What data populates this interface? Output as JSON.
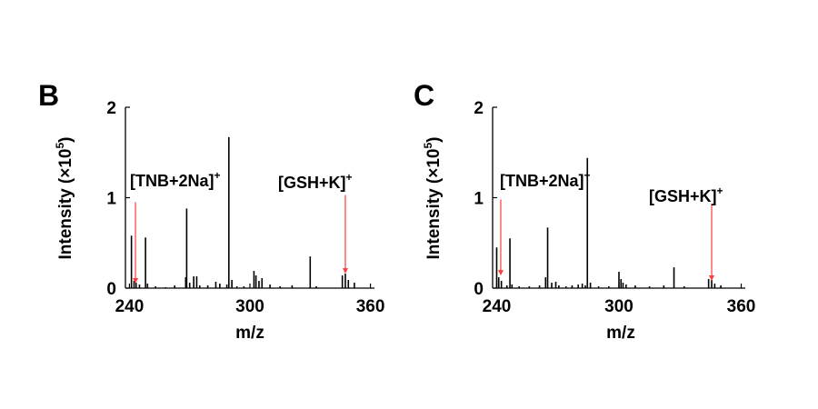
{
  "chart_data": [
    {
      "panel": "B",
      "type": "bar",
      "xlabel": "m/z",
      "ylabel": "Intensity (×10",
      "ylabel_sup": "5",
      "ylabel_end": ")",
      "xlim": [
        238,
        362
      ],
      "ylim": [
        0,
        2
      ],
      "xticks": [
        "240",
        "300",
        "360"
      ],
      "yticks": [
        "0",
        "1",
        "2"
      ],
      "peaks": [
        {
          "x": 241.0,
          "y": 0.58
        },
        {
          "x": 242.3,
          "y": 0.08
        },
        {
          "x": 243.3,
          "y": 0.06
        },
        {
          "x": 245.0,
          "y": 0.04
        },
        {
          "x": 248.0,
          "y": 0.56
        },
        {
          "x": 249.0,
          "y": 0.05
        },
        {
          "x": 253.0,
          "y": 0.02
        },
        {
          "x": 258.0,
          "y": 0.01
        },
        {
          "x": 262.5,
          "y": 0.03
        },
        {
          "x": 268.0,
          "y": 0.12
        },
        {
          "x": 268.5,
          "y": 0.88
        },
        {
          "x": 270.0,
          "y": 0.06
        },
        {
          "x": 272.0,
          "y": 0.13
        },
        {
          "x": 273.5,
          "y": 0.13
        },
        {
          "x": 275.0,
          "y": 0.03
        },
        {
          "x": 279.0,
          "y": 0.03
        },
        {
          "x": 283.0,
          "y": 0.07
        },
        {
          "x": 285.0,
          "y": 0.05
        },
        {
          "x": 288.5,
          "y": 0.04
        },
        {
          "x": 289.5,
          "y": 1.67
        },
        {
          "x": 291.0,
          "y": 0.09
        },
        {
          "x": 293.5,
          "y": 0.02
        },
        {
          "x": 297.0,
          "y": 0.02
        },
        {
          "x": 302.0,
          "y": 0.19
        },
        {
          "x": 303.0,
          "y": 0.14
        },
        {
          "x": 304.5,
          "y": 0.08
        },
        {
          "x": 306.0,
          "y": 0.11
        },
        {
          "x": 310.0,
          "y": 0.04
        },
        {
          "x": 315.0,
          "y": 0.02
        },
        {
          "x": 321.0,
          "y": 0.03
        },
        {
          "x": 330.0,
          "y": 0.35
        },
        {
          "x": 333.0,
          "y": 0.02
        },
        {
          "x": 346.0,
          "y": 0.14
        },
        {
          "x": 347.5,
          "y": 0.16
        },
        {
          "x": 349.0,
          "y": 0.09
        },
        {
          "x": 352.0,
          "y": 0.06
        }
      ],
      "annotations": [
        {
          "base": "[TNB+2Na]",
          "sup": "+",
          "arrow_x": 243.0,
          "arrow_y_from": 0.95,
          "arrow_y_to": 0.05,
          "text_anchor": "tnb"
        },
        {
          "base": "[GSH+K]",
          "sup": "+",
          "arrow_x": 347.5,
          "arrow_y_from": 1.03,
          "arrow_y_to": 0.16,
          "text_anchor": "gsh"
        }
      ]
    },
    {
      "panel": "C",
      "type": "bar",
      "xlabel": "m/z",
      "ylabel": "Intensity (×10",
      "ylabel_sup": "5",
      "ylabel_end": ")",
      "xlim": [
        238,
        362
      ],
      "ylim": [
        0,
        2
      ],
      "xticks": [
        "240",
        "300",
        "360"
      ],
      "yticks": [
        "0",
        "1",
        "2"
      ],
      "peaks": [
        {
          "x": 240.0,
          "y": 0.45
        },
        {
          "x": 241.0,
          "y": 0.12
        },
        {
          "x": 242.3,
          "y": 0.08
        },
        {
          "x": 245.0,
          "y": 0.03
        },
        {
          "x": 246.5,
          "y": 0.55
        },
        {
          "x": 247.5,
          "y": 0.04
        },
        {
          "x": 251.0,
          "y": 0.02
        },
        {
          "x": 256.0,
          "y": 0.02
        },
        {
          "x": 261.0,
          "y": 0.03
        },
        {
          "x": 264.0,
          "y": 0.12
        },
        {
          "x": 265.0,
          "y": 0.67
        },
        {
          "x": 267.0,
          "y": 0.06
        },
        {
          "x": 269.0,
          "y": 0.07
        },
        {
          "x": 270.5,
          "y": 0.03
        },
        {
          "x": 274.0,
          "y": 0.02
        },
        {
          "x": 277.0,
          "y": 0.03
        },
        {
          "x": 280.0,
          "y": 0.04
        },
        {
          "x": 282.0,
          "y": 0.05
        },
        {
          "x": 283.5,
          "y": 0.03
        },
        {
          "x": 284.5,
          "y": 1.44
        },
        {
          "x": 286.0,
          "y": 0.06
        },
        {
          "x": 290.0,
          "y": 0.02
        },
        {
          "x": 295.0,
          "y": 0.02
        },
        {
          "x": 300.0,
          "y": 0.18
        },
        {
          "x": 301.0,
          "y": 0.1
        },
        {
          "x": 302.0,
          "y": 0.06
        },
        {
          "x": 303.5,
          "y": 0.04
        },
        {
          "x": 308.0,
          "y": 0.03
        },
        {
          "x": 315.0,
          "y": 0.02
        },
        {
          "x": 322.0,
          "y": 0.03
        },
        {
          "x": 327.0,
          "y": 0.23
        },
        {
          "x": 332.0,
          "y": 0.02
        },
        {
          "x": 344.0,
          "y": 0.1
        },
        {
          "x": 345.5,
          "y": 0.09
        },
        {
          "x": 347.0,
          "y": 0.05
        },
        {
          "x": 350.0,
          "y": 0.03
        }
      ],
      "annotations": [
        {
          "base": "[TNB+2Na]",
          "sup": "+",
          "arrow_x": 242.0,
          "arrow_y_from": 0.98,
          "arrow_y_to": 0.14,
          "text_anchor": "tnb"
        },
        {
          "base": "[GSH+K]",
          "sup": "+",
          "arrow_x": 345.5,
          "arrow_y_from": 0.93,
          "arrow_y_to": 0.08,
          "text_anchor": "gsh"
        }
      ]
    }
  ],
  "colors": {
    "peak": "#000000",
    "arrow": "#ff3b3b",
    "axis": "#000000"
  }
}
